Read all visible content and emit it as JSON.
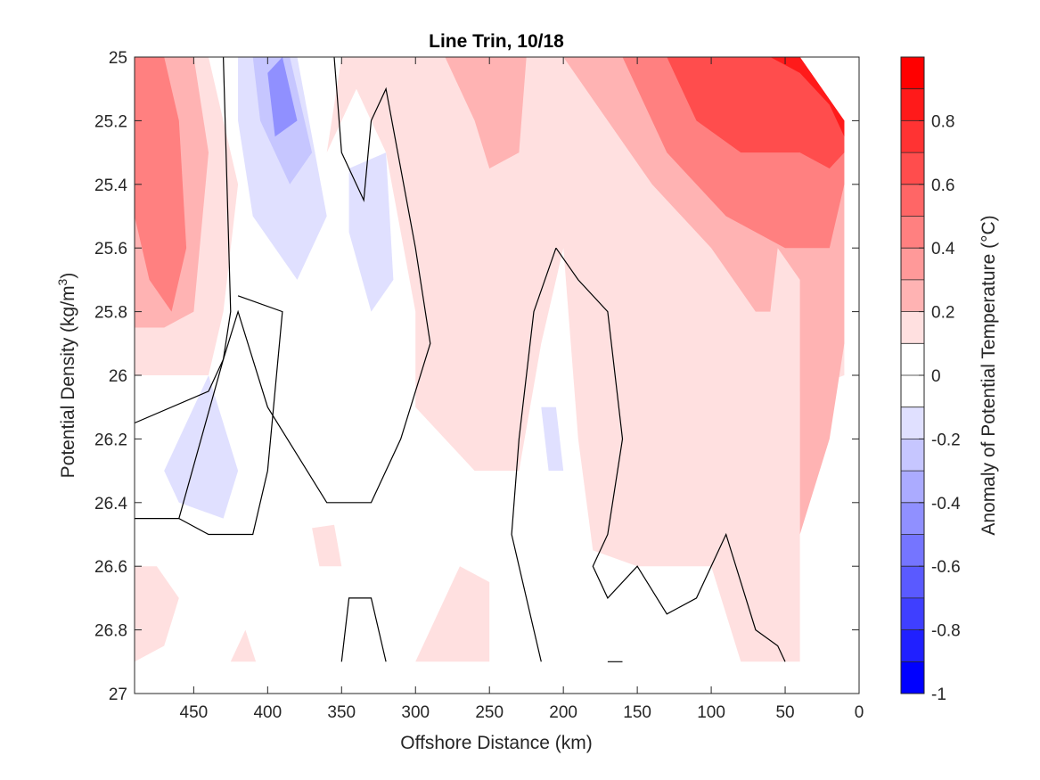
{
  "chart_data": {
    "type": "heatmap",
    "title": "Line Trin, 10/18",
    "xlabel": "Offshore Distance (km)",
    "ylabel": "Potential Density (kg/m",
    "ylabel_sup": "3",
    "ylabel_end": ")",
    "colorbar_label": "Anomaly of Potential Temperature (°C)",
    "xlim": [
      490,
      0
    ],
    "ylim": [
      25,
      27
    ],
    "x_reversed": true,
    "y_reversed": true,
    "x_ticks": [
      450,
      400,
      350,
      300,
      250,
      200,
      150,
      100,
      50,
      0
    ],
    "x_tick_labels": [
      "450",
      "400",
      "350",
      "300",
      "250",
      "200",
      "150",
      "100",
      "50",
      "0"
    ],
    "y_ticks": [
      25,
      25.2,
      25.4,
      25.6,
      25.8,
      26,
      26.2,
      26.4,
      26.6,
      26.8,
      27
    ],
    "y_tick_labels": [
      "25",
      "25.2",
      "25.4",
      "25.6",
      "25.8",
      "26",
      "26.2",
      "26.4",
      "26.6",
      "26.8",
      "27"
    ],
    "colorbar": {
      "clim": [
        -1,
        1
      ],
      "ticks": [
        0.8,
        0.6,
        0.4,
        0.2,
        0,
        -0.2,
        -0.4,
        -0.6,
        -0.8,
        -1
      ],
      "tick_labels": [
        "0.8",
        "0.6",
        "0.4",
        "0.2",
        "0",
        "-0.2",
        "-0.4",
        "-0.6",
        "-0.8",
        "-1"
      ],
      "levels": [
        {
          "range": [
            0.9,
            1.0
          ],
          "color": "#ff0000"
        },
        {
          "range": [
            0.8,
            0.9
          ],
          "color": "#ff1a1a"
        },
        {
          "range": [
            0.7,
            0.8
          ],
          "color": "#ff3333"
        },
        {
          "range": [
            0.6,
            0.7
          ],
          "color": "#ff4d4d"
        },
        {
          "range": [
            0.5,
            0.6
          ],
          "color": "#ff6666"
        },
        {
          "range": [
            0.4,
            0.5
          ],
          "color": "#ff8080"
        },
        {
          "range": [
            0.3,
            0.4
          ],
          "color": "#ff9999"
        },
        {
          "range": [
            0.2,
            0.3
          ],
          "color": "#ffb3b3"
        },
        {
          "range": [
            0.1,
            0.2
          ],
          "color": "#ffe0e0"
        },
        {
          "range": [
            0.0,
            0.1
          ],
          "color": "#ffffff"
        },
        {
          "range": [
            -0.1,
            0.0
          ],
          "color": "#ffffff"
        },
        {
          "range": [
            -0.2,
            -0.1
          ],
          "color": "#e0e0ff"
        },
        {
          "range": [
            -0.3,
            -0.2
          ],
          "color": "#c6c6ff"
        },
        {
          "range": [
            -0.4,
            -0.3
          ],
          "color": "#ababff"
        },
        {
          "range": [
            -0.5,
            -0.4
          ],
          "color": "#9090ff"
        },
        {
          "range": [
            -0.6,
            -0.5
          ],
          "color": "#7575ff"
        },
        {
          "range": [
            -0.7,
            -0.6
          ],
          "color": "#5a5aff"
        },
        {
          "range": [
            -0.8,
            -0.7
          ],
          "color": "#3f3fff"
        },
        {
          "range": [
            -0.9,
            -0.8
          ],
          "color": "#2020ff"
        },
        {
          "range": [
            -1.0,
            -0.9
          ],
          "color": "#0000ff"
        }
      ]
    },
    "anomaly_regions": [
      {
        "value": 0.15,
        "color": "#ffe0e0",
        "points": [
          [
            490,
            25
          ],
          [
            40,
            25
          ],
          [
            10,
            25.2
          ],
          [
            10,
            26
          ],
          [
            40,
            26.05
          ],
          [
            40,
            26.9
          ],
          [
            80,
            26.9
          ],
          [
            100,
            26.6
          ],
          [
            150,
            26.6
          ],
          [
            180,
            26.55
          ],
          [
            190,
            26.2
          ],
          [
            200,
            25.6
          ],
          [
            215,
            25.9
          ],
          [
            230,
            26.3
          ],
          [
            260,
            26.3
          ],
          [
            300,
            26.1
          ],
          [
            300,
            25.8
          ],
          [
            320,
            25.3
          ],
          [
            340,
            25.1
          ],
          [
            370,
            25.4
          ],
          [
            360,
            25.3
          ],
          [
            350,
            25.0
          ],
          [
            490,
            25.0
          ]
        ]
      },
      {
        "value": 0.15,
        "color": "#ffe0e0",
        "points": [
          [
            490,
            25
          ],
          [
            440,
            25
          ],
          [
            420,
            25.4
          ],
          [
            430,
            25.8
          ],
          [
            440,
            26.0
          ],
          [
            490,
            26.0
          ]
        ]
      },
      {
        "value": 0.15,
        "color": "#ffe0e0",
        "points": [
          [
            490,
            26.6
          ],
          [
            475,
            26.6
          ],
          [
            460,
            26.7
          ],
          [
            470,
            26.85
          ],
          [
            490,
            26.9
          ]
        ]
      },
      {
        "value": 0.15,
        "color": "#ffe0e0",
        "points": [
          [
            300,
            26.9
          ],
          [
            270,
            26.6
          ],
          [
            250,
            26.65
          ],
          [
            250,
            26.9
          ]
        ]
      },
      {
        "value": 0.15,
        "color": "#ffe0e0",
        "points": [
          [
            370,
            26.48
          ],
          [
            355,
            26.47
          ],
          [
            350,
            26.6
          ],
          [
            365,
            26.6
          ]
        ]
      },
      {
        "value": 0.15,
        "color": "#ffe0e0",
        "points": [
          [
            425,
            26.9
          ],
          [
            415,
            26.8
          ],
          [
            408,
            26.9
          ]
        ]
      },
      {
        "value": 0.35,
        "color": "#ffb3b3",
        "points": [
          [
            490,
            25.0
          ],
          [
            450,
            25.0
          ],
          [
            440,
            25.3
          ],
          [
            450,
            25.8
          ],
          [
            470,
            25.85
          ],
          [
            490,
            25.85
          ]
        ]
      },
      {
        "value": 0.35,
        "color": "#ffb3b3",
        "points": [
          [
            280,
            25.0
          ],
          [
            260,
            25.2
          ],
          [
            250,
            25.35
          ],
          [
            230,
            25.3
          ],
          [
            225,
            25.0
          ]
        ]
      },
      {
        "value": 0.35,
        "color": "#ffb3b3",
        "points": [
          [
            200,
            25.0
          ],
          [
            170,
            25.2
          ],
          [
            140,
            25.4
          ],
          [
            100,
            25.6
          ],
          [
            70,
            25.8
          ],
          [
            60,
            25.8
          ],
          [
            55,
            25.6
          ],
          [
            40,
            25.7
          ],
          [
            40,
            26.5
          ],
          [
            20,
            26.2
          ],
          [
            10,
            25.9
          ],
          [
            10,
            25.2
          ],
          [
            40,
            25.0
          ]
        ]
      },
      {
        "value": 0.55,
        "color": "#ff8080",
        "points": [
          [
            490,
            25.0
          ],
          [
            470,
            25.0
          ],
          [
            460,
            25.2
          ],
          [
            455,
            25.6
          ],
          [
            465,
            25.8
          ],
          [
            480,
            25.7
          ],
          [
            490,
            25.5
          ]
        ]
      },
      {
        "value": 0.55,
        "color": "#ff8080",
        "points": [
          [
            160,
            25.0
          ],
          [
            130,
            25.3
          ],
          [
            90,
            25.5
          ],
          [
            50,
            25.6
          ],
          [
            20,
            25.6
          ],
          [
            10,
            25.4
          ],
          [
            10,
            25.2
          ],
          [
            40,
            25.0
          ]
        ]
      },
      {
        "value": 0.75,
        "color": "#ff4d4d",
        "points": [
          [
            130,
            25.0
          ],
          [
            110,
            25.2
          ],
          [
            80,
            25.3
          ],
          [
            40,
            25.3
          ],
          [
            20,
            25.35
          ],
          [
            10,
            25.3
          ],
          [
            10,
            25.2
          ],
          [
            40,
            25.0
          ]
        ]
      },
      {
        "value": 0.9,
        "color": "#ff1a1a",
        "points": [
          [
            60,
            25.0
          ],
          [
            40,
            25.05
          ],
          [
            20,
            25.15
          ],
          [
            10,
            25.25
          ],
          [
            10,
            25.2
          ],
          [
            40,
            25.0
          ]
        ]
      },
      {
        "value": -0.15,
        "color": "#e0e0ff",
        "points": [
          [
            420,
            25.0
          ],
          [
            380,
            25.0
          ],
          [
            360,
            25.5
          ],
          [
            380,
            25.7
          ],
          [
            410,
            25.5
          ],
          [
            420,
            25.2
          ]
        ]
      },
      {
        "value": -0.15,
        "color": "#e0e0ff",
        "points": [
          [
            345,
            25.35
          ],
          [
            320,
            25.3
          ],
          [
            315,
            25.7
          ],
          [
            330,
            25.8
          ],
          [
            345,
            25.55
          ]
        ]
      },
      {
        "value": -0.15,
        "color": "#e0e0ff",
        "points": [
          [
            470,
            26.3
          ],
          [
            440,
            26.0
          ],
          [
            420,
            26.3
          ],
          [
            430,
            26.45
          ],
          [
            460,
            26.4
          ]
        ]
      },
      {
        "value": -0.15,
        "color": "#e0e0ff",
        "points": [
          [
            215,
            26.1
          ],
          [
            205,
            26.1
          ],
          [
            200,
            26.3
          ],
          [
            210,
            26.3
          ]
        ]
      },
      {
        "value": -0.3,
        "color": "#c6c6ff",
        "points": [
          [
            410,
            25.0
          ],
          [
            385,
            25.0
          ],
          [
            370,
            25.3
          ],
          [
            385,
            25.4
          ],
          [
            405,
            25.2
          ]
        ]
      },
      {
        "value": -0.45,
        "color": "#9090ff",
        "points": [
          [
            400,
            25.05
          ],
          [
            390,
            25.0
          ],
          [
            380,
            25.2
          ],
          [
            395,
            25.25
          ]
        ]
      }
    ],
    "zero_contours": [
      [
        [
          430,
          25.0
        ],
        [
          425,
          25.8
        ],
        [
          430,
          25.95
        ],
        [
          440,
          26.05
        ],
        [
          490,
          26.15
        ]
      ],
      [
        [
          355,
          25.0
        ],
        [
          350,
          25.3
        ],
        [
          335,
          25.45
        ],
        [
          330,
          25.2
        ],
        [
          320,
          25.1
        ],
        [
          300,
          25.6
        ],
        [
          290,
          25.9
        ],
        [
          310,
          26.2
        ],
        [
          330,
          26.4
        ],
        [
          360,
          26.4
        ],
        [
          400,
          26.1
        ],
        [
          420,
          25.8
        ],
        [
          430,
          25.95
        ],
        [
          460,
          26.45
        ],
        [
          490,
          26.45
        ]
      ],
      [
        [
          460,
          26.45
        ],
        [
          440,
          26.5
        ],
        [
          410,
          26.5
        ],
        [
          400,
          26.3
        ],
        [
          390,
          25.8
        ],
        [
          420,
          25.75
        ]
      ],
      [
        [
          205,
          25.6
        ],
        [
          190,
          25.7
        ],
        [
          170,
          25.8
        ],
        [
          160,
          26.2
        ],
        [
          170,
          26.5
        ],
        [
          180,
          26.6
        ],
        [
          170,
          26.7
        ],
        [
          150,
          26.6
        ],
        [
          130,
          26.75
        ],
        [
          110,
          26.7
        ],
        [
          90,
          26.5
        ],
        [
          70,
          26.8
        ],
        [
          55,
          26.85
        ],
        [
          50,
          26.9
        ]
      ],
      [
        [
          205,
          25.6
        ],
        [
          220,
          25.8
        ],
        [
          230,
          26.2
        ],
        [
          235,
          26.5
        ],
        [
          220,
          26.8
        ],
        [
          215,
          26.9
        ]
      ],
      [
        [
          350,
          26.9
        ],
        [
          345,
          26.7
        ],
        [
          330,
          26.7
        ],
        [
          320,
          26.9
        ]
      ],
      [
        [
          170,
          26.9
        ],
        [
          160,
          26.9
        ]
      ]
    ]
  }
}
